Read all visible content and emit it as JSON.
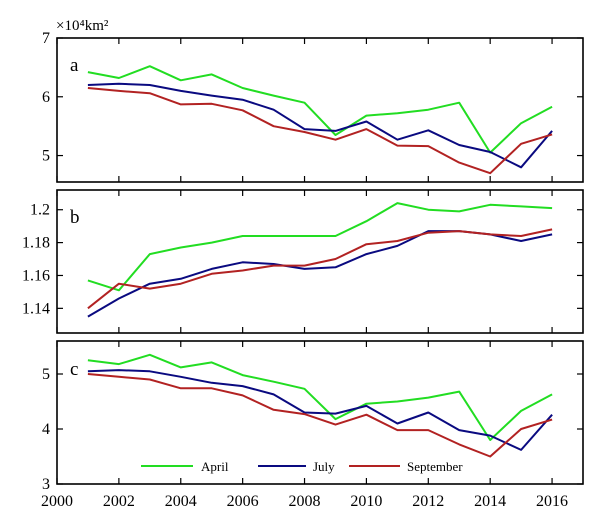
{
  "chart_data": [
    {
      "type": "line",
      "panel_label": "a",
      "unit_label": "×10⁴km²",
      "x": [
        2001,
        2002,
        2003,
        2004,
        2005,
        2006,
        2007,
        2008,
        2009,
        2010,
        2011,
        2012,
        2013,
        2014,
        2015,
        2016
      ],
      "xlim": [
        2000,
        2017
      ],
      "ylim": [
        4.55,
        7
      ],
      "yticks": [
        5,
        6,
        7
      ],
      "series": [
        {
          "name": "April",
          "color": "#22dd22",
          "values": [
            6.42,
            6.32,
            6.52,
            6.28,
            6.38,
            6.15,
            6.02,
            5.9,
            5.35,
            5.68,
            5.72,
            5.78,
            5.9,
            5.05,
            5.55,
            5.83
          ]
        },
        {
          "name": "July",
          "color": "#0a0a80",
          "values": [
            6.2,
            6.22,
            6.2,
            6.1,
            6.02,
            5.95,
            5.78,
            5.45,
            5.42,
            5.58,
            5.27,
            5.43,
            5.18,
            5.06,
            4.8,
            5.42
          ]
        },
        {
          "name": "September",
          "color": "#b22222",
          "values": [
            6.15,
            6.1,
            6.06,
            5.87,
            5.88,
            5.77,
            5.5,
            5.4,
            5.27,
            5.45,
            5.17,
            5.16,
            4.88,
            4.7,
            5.2,
            5.36
          ]
        }
      ]
    },
    {
      "type": "line",
      "panel_label": "b",
      "x": [
        2001,
        2002,
        2003,
        2004,
        2005,
        2006,
        2007,
        2008,
        2009,
        2010,
        2011,
        2012,
        2013,
        2014,
        2015,
        2016
      ],
      "xlim": [
        2000,
        2017
      ],
      "ylim": [
        1.125,
        1.212
      ],
      "yticks": [
        1.14,
        1.16,
        1.18,
        1.2
      ],
      "ytick_labels": [
        "1.14",
        "1.16",
        "1.18",
        "1.2"
      ],
      "series": [
        {
          "name": "April",
          "color": "#22dd22",
          "values": [
            1.157,
            1.151,
            1.173,
            1.177,
            1.18,
            1.184,
            1.184,
            1.184,
            1.184,
            1.193,
            1.204,
            1.2,
            1.199,
            1.203,
            1.202,
            1.201
          ]
        },
        {
          "name": "July",
          "color": "#0a0a80",
          "values": [
            1.135,
            1.146,
            1.155,
            1.158,
            1.164,
            1.168,
            1.167,
            1.164,
            1.165,
            1.173,
            1.178,
            1.187,
            1.187,
            1.185,
            1.181,
            1.185
          ]
        },
        {
          "name": "September",
          "color": "#b22222",
          "values": [
            1.14,
            1.155,
            1.152,
            1.155,
            1.161,
            1.163,
            1.166,
            1.166,
            1.17,
            1.179,
            1.181,
            1.186,
            1.187,
            1.185,
            1.184,
            1.188
          ]
        }
      ]
    },
    {
      "type": "line",
      "panel_label": "c",
      "x": [
        2001,
        2002,
        2003,
        2004,
        2005,
        2006,
        2007,
        2008,
        2009,
        2010,
        2011,
        2012,
        2013,
        2014,
        2015,
        2016
      ],
      "xlim": [
        2000,
        2017
      ],
      "ylim": [
        3,
        5.6
      ],
      "yticks": [
        3,
        4,
        5
      ],
      "xticks": [
        2000,
        2002,
        2004,
        2006,
        2008,
        2010,
        2012,
        2014,
        2016
      ],
      "series": [
        {
          "name": "April",
          "color": "#22dd22",
          "values": [
            5.25,
            5.18,
            5.35,
            5.12,
            5.21,
            4.98,
            4.86,
            4.73,
            4.18,
            4.46,
            4.5,
            4.57,
            4.68,
            3.8,
            4.33,
            4.63
          ]
        },
        {
          "name": "July",
          "color": "#0a0a80",
          "values": [
            5.05,
            5.07,
            5.05,
            4.95,
            4.84,
            4.78,
            4.63,
            4.3,
            4.28,
            4.42,
            4.1,
            4.3,
            3.98,
            3.88,
            3.62,
            4.26
          ]
        },
        {
          "name": "September",
          "color": "#b22222",
          "values": [
            5.0,
            4.95,
            4.9,
            4.74,
            4.74,
            4.61,
            4.35,
            4.27,
            4.08,
            4.26,
            3.98,
            3.98,
            3.72,
            3.5,
            4.0,
            4.17
          ]
        }
      ],
      "legend": {
        "placement": "bottom-center",
        "entries": [
          "April",
          "July",
          "September"
        ]
      }
    }
  ]
}
